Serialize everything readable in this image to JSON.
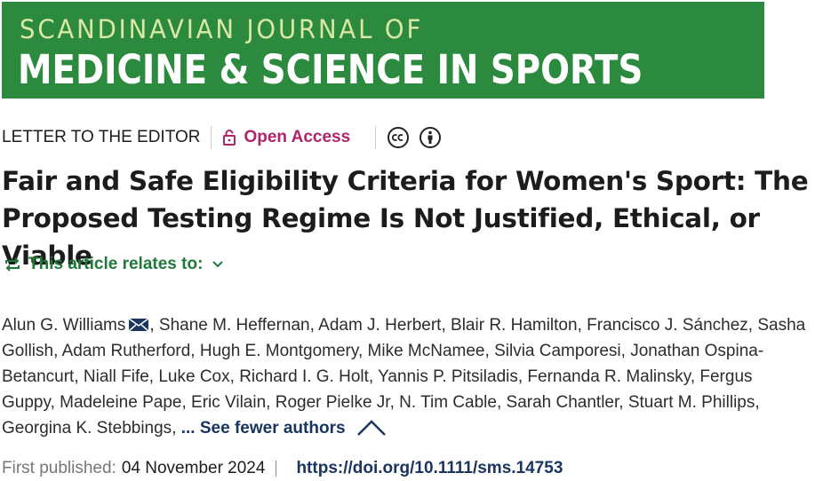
{
  "header": {
    "journal_line1": "SCANDINAVIAN JOURNAL OF",
    "journal_line2": "MEDICINE & SCIENCE IN SPORTS"
  },
  "article": {
    "type": "LETTER TO THE EDITOR",
    "access": "Open Access",
    "title": "Fair and Safe Eligibility Criteria for Women's Sport: The Proposed Testing Regime Is Not Justified, Ethical, or Viable",
    "relates": "This article relates to:",
    "authors": [
      "Alun G. Williams",
      "Shane M. Heffernan",
      "Adam J. Herbert",
      "Blair R. Hamilton",
      "Francisco J. Sánchez",
      "Sasha Gollish",
      "Adam Rutherford",
      "Hugh E. Montgomery",
      "Mike McNamee",
      "Silvia Camporesi",
      "Jonathan Ospina-Betancurt",
      "Niall Fife",
      "Luke Cox",
      "Richard I. G. Holt",
      "Yannis P. Pitsiladis",
      "Fernanda R. Malinsky",
      "Fergus Guppy",
      "Madeleine Pape",
      "Eric Vilain",
      "Roger Pielke Jr",
      "N. Tim Cable",
      "Sarah Chantler",
      "Stuart M. Phillips",
      "Georgina K. Stebbings"
    ],
    "see_fewer": "... See fewer authors",
    "published_label": "First published:",
    "published_date": "04 November 2024",
    "doi": "https://doi.org/10.1111/sms.14753"
  }
}
